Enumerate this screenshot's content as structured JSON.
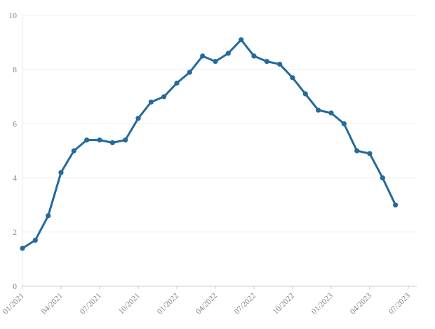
{
  "chart_data": {
    "type": "line",
    "title": "",
    "series_name": "value",
    "x": [
      "01/2021",
      "02/2021",
      "03/2021",
      "04/2021",
      "05/2021",
      "06/2021",
      "07/2021",
      "08/2021",
      "09/2021",
      "10/2021",
      "11/2021",
      "12/2021",
      "01/2022",
      "02/2022",
      "03/2022",
      "04/2022",
      "05/2022",
      "06/2022",
      "07/2022",
      "08/2022",
      "09/2022",
      "10/2022",
      "11/2022",
      "12/2022",
      "01/2023",
      "02/2023",
      "03/2023",
      "04/2023",
      "05/2023",
      "06/2023"
    ],
    "values": [
      1.4,
      1.7,
      2.6,
      4.2,
      5.0,
      5.4,
      5.4,
      5.3,
      5.4,
      6.2,
      6.8,
      7.0,
      7.5,
      7.9,
      8.5,
      8.3,
      8.6,
      9.1,
      8.5,
      8.3,
      8.2,
      7.7,
      7.1,
      6.5,
      6.4,
      6.0,
      5.0,
      4.9,
      4.0,
      3.0
    ],
    "x_tick_labels": [
      "01/2021",
      "04/2021",
      "07/2021",
      "10/2021",
      "01/2022",
      "04/2022",
      "07/2022",
      "10/2022",
      "01/2023",
      "04/2023",
      "07/2023"
    ],
    "y_tick_labels": [
      "0",
      "2",
      "4",
      "6",
      "8",
      "10"
    ],
    "ylim": [
      0,
      10
    ],
    "y_tick_step": 2,
    "grid": "horizontal-only",
    "legend": "none",
    "x_label_rotation_deg": -45,
    "marker": "circle",
    "line_color": "#25699d",
    "marker_color": "#25699d",
    "gridline_color": "#efefef",
    "axis_color": "#cccccc",
    "minor_axis_color": "#e9e9e9",
    "label_color": "#85878b",
    "background": "#ffffff"
  }
}
